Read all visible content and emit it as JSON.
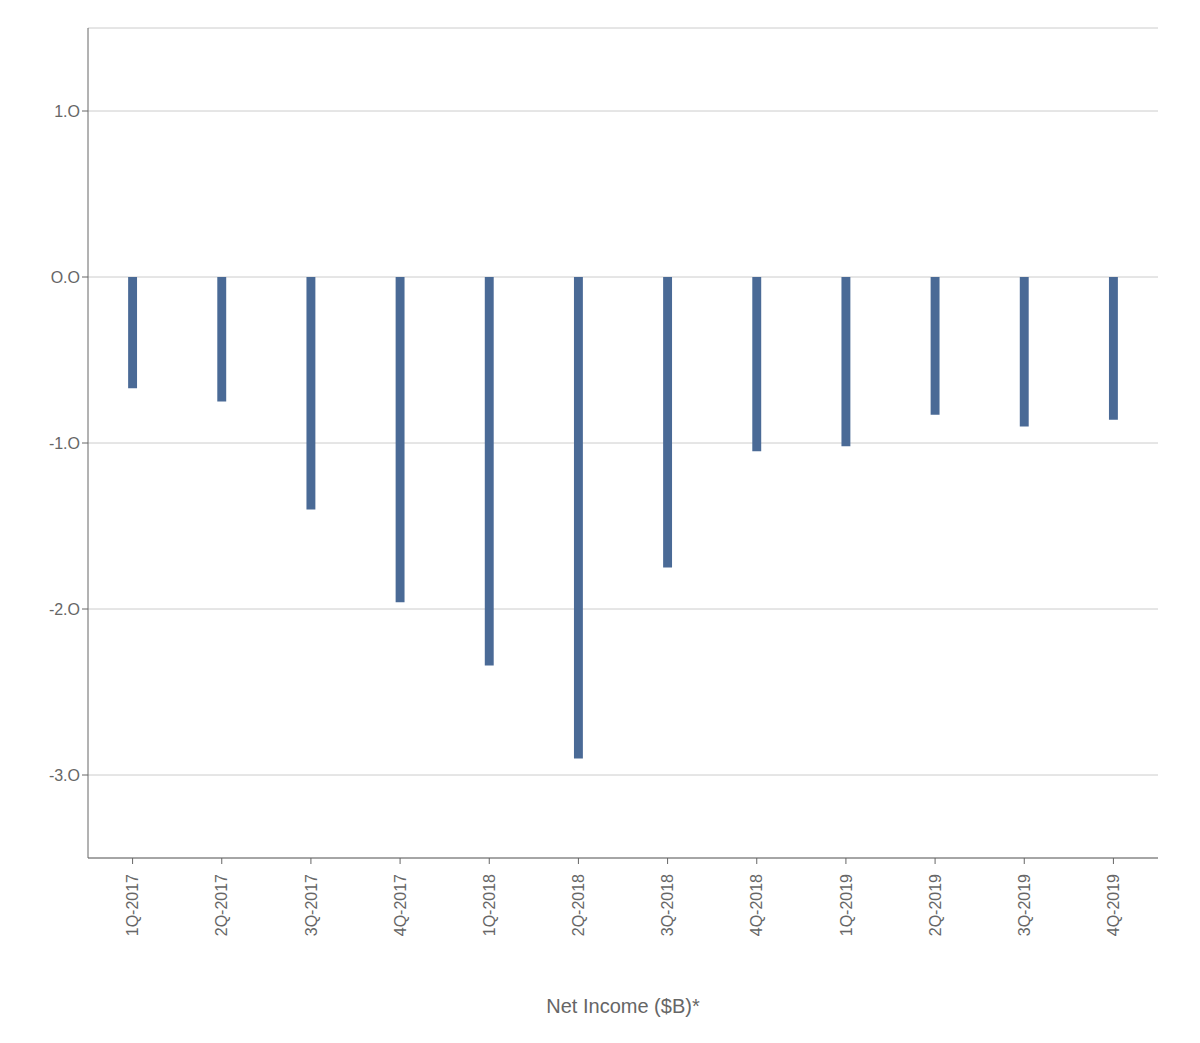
{
  "chart_data": {
    "type": "bar",
    "xlabel": "Net Income ($B)*",
    "categories": [
      "1Q-2017",
      "2Q-2017",
      "3Q-2017",
      "4Q-2017",
      "1Q-2018",
      "2Q-2018",
      "3Q-2018",
      "4Q-2018",
      "1Q-2019",
      "2Q-2019",
      "3Q-2019",
      "4Q-2019"
    ],
    "values": [
      -0.67,
      -0.75,
      -1.4,
      -1.96,
      -2.34,
      -2.9,
      -1.75,
      -1.05,
      -1.02,
      -0.83,
      -0.9,
      -0.86
    ],
    "color": "#4a6a96",
    "ylim": [
      -3.5,
      1.5
    ],
    "yticks": [
      {
        "value": 1.0,
        "label": "1.O"
      },
      {
        "value": 0.0,
        "label": "O.O"
      },
      {
        "value": -1.0,
        "label": "-1.O"
      },
      {
        "value": -2.0,
        "label": "-2.O"
      },
      {
        "value": -3.0,
        "label": "-3.O"
      }
    ],
    "grid": true
  }
}
